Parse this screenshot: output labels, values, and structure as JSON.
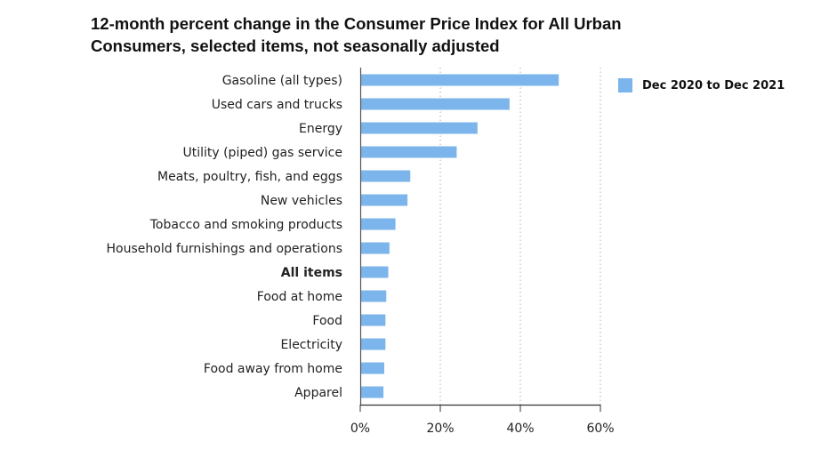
{
  "chart_data": {
    "type": "bar",
    "orientation": "horizontal",
    "title_lines": [
      "12-month percent change in the Consumer Price Index for All Urban",
      "Consumers, selected items, not seasonally adjusted"
    ],
    "categories": [
      "Gasoline (all types)",
      "Used cars and trucks",
      "Energy",
      "Utility (piped) gas service",
      "Meats, poultry, fish, and eggs",
      "New vehicles",
      "Tobacco and smoking products",
      "Household furnishings and operations",
      "All items",
      "Food at home",
      "Food",
      "Electricity",
      "Food away from home",
      "Apparel"
    ],
    "bold_categories": [
      "All items"
    ],
    "series": [
      {
        "name": "Dec 2020 to Dec 2021",
        "color": "#7cb5ec",
        "values": [
          49.6,
          37.3,
          29.3,
          24.1,
          12.5,
          11.8,
          8.8,
          7.3,
          7.0,
          6.5,
          6.3,
          6.3,
          6.0,
          5.8
        ]
      }
    ],
    "xlim": [
      0,
      60
    ],
    "xticks": [
      0,
      20,
      40,
      60
    ],
    "xtick_labels": [
      "0%",
      "20%",
      "40%",
      "60%"
    ],
    "grid": "vertical dotted",
    "legend_position": "right"
  }
}
